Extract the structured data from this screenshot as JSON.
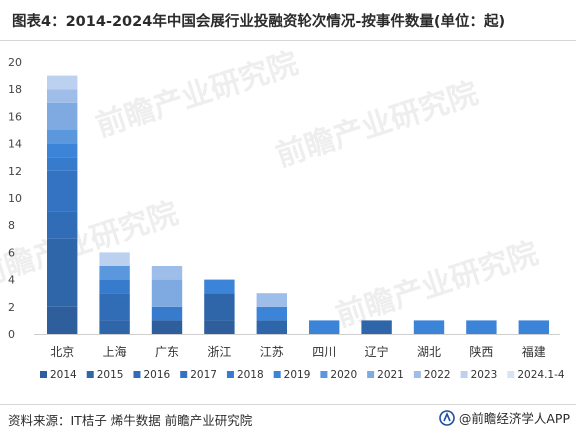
{
  "title": "图表4：2014-2024年中国会展行业投融资轮次情况-按事件数量(单位：起)",
  "source": "资料来源：IT桔子 烯牛数据 前瞻产业研究院",
  "brand": "@前瞻经济学人APP",
  "watermark": "前瞻产业研究院",
  "colors": {
    "2014": "#2e5f9c",
    "2015": "#2f66aa",
    "2016": "#316db6",
    "2017": "#3473c1",
    "2018": "#377bcc",
    "2019": "#3c84d8",
    "2020": "#5b97dc",
    "2021": "#7ea9e1",
    "2022": "#9ebde8",
    "2023": "#bcd0ef",
    "2024.1-4": "#d8e3f5"
  },
  "chart_data": {
    "type": "bar",
    "stacked": true,
    "categories": [
      "北京",
      "上海",
      "广东",
      "浙江",
      "江苏",
      "四川",
      "辽宁",
      "湖北",
      "陕西",
      "福建"
    ],
    "ylim": [
      0,
      20
    ],
    "yticks": [
      0,
      2,
      4,
      6,
      8,
      10,
      12,
      14,
      16,
      18,
      20
    ],
    "grid": false,
    "legend": "bottom",
    "series": [
      {
        "name": "2014",
        "values": [
          2,
          0,
          1,
          1,
          0,
          0,
          0,
          0,
          0,
          0
        ]
      },
      {
        "name": "2015",
        "values": [
          5,
          1,
          0,
          2,
          1,
          0,
          1,
          0,
          0,
          0
        ]
      },
      {
        "name": "2016",
        "values": [
          2,
          2,
          0,
          0,
          0,
          0,
          0,
          0,
          0,
          0
        ]
      },
      {
        "name": "2017",
        "values": [
          3,
          0,
          0,
          0,
          0,
          0,
          0,
          0,
          0,
          0
        ]
      },
      {
        "name": "2018",
        "values": [
          1,
          1,
          1,
          0,
          0,
          0,
          0,
          0,
          0,
          0
        ]
      },
      {
        "name": "2019",
        "values": [
          1,
          0,
          0,
          1,
          1,
          1,
          0,
          1,
          1,
          1
        ]
      },
      {
        "name": "2020",
        "values": [
          1,
          1,
          0,
          0,
          0,
          0,
          0,
          0,
          0,
          0
        ]
      },
      {
        "name": "2021",
        "values": [
          2,
          0,
          2,
          0,
          0,
          0,
          0,
          0,
          0,
          0
        ]
      },
      {
        "name": "2022",
        "values": [
          1,
          0,
          1,
          0,
          1,
          0,
          0,
          0,
          0,
          0
        ]
      },
      {
        "name": "2023",
        "values": [
          1,
          1,
          0,
          0,
          0,
          0,
          0,
          0,
          0,
          0
        ]
      },
      {
        "name": "2024.1-4",
        "values": [
          0,
          0,
          0,
          0,
          0,
          0,
          0,
          0,
          0,
          0
        ]
      }
    ]
  }
}
